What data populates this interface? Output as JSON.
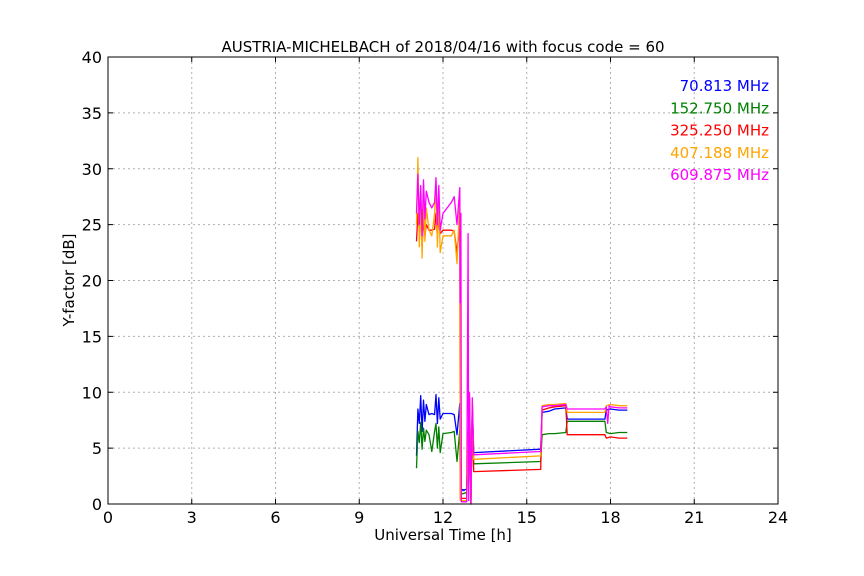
{
  "chart_data": {
    "type": "line",
    "title": "AUSTRIA-MICHELBACH of 2018/04/16 with focus code = 60",
    "xlabel": "Universal Time [h]",
    "ylabel": "Y-factor [dB]",
    "xlim": [
      0,
      24
    ],
    "ylim": [
      0,
      40
    ],
    "xticks": [
      0,
      3,
      6,
      9,
      12,
      15,
      18,
      21,
      24
    ],
    "yticks": [
      0,
      5,
      10,
      15,
      20,
      25,
      30,
      35,
      40
    ],
    "grid": true,
    "legend_position": "top-right",
    "series": [
      {
        "name": "70.813 MHz",
        "color": "#0000ff",
        "x": [
          11.05,
          11.1,
          11.15,
          11.2,
          11.25,
          11.3,
          11.35,
          11.4,
          11.5,
          11.6,
          11.7,
          11.75,
          11.8,
          11.85,
          11.9,
          12.0,
          12.3,
          12.4,
          12.5,
          12.6,
          12.62,
          12.65,
          12.68,
          12.7,
          12.72,
          12.75,
          12.78,
          12.85,
          12.95,
          13.0,
          13.05,
          13.1,
          15.5,
          15.55,
          15.8,
          16.0,
          16.4,
          16.45,
          17.8,
          17.85,
          18.0,
          18.3,
          18.6
        ],
        "y": [
          4.3,
          8.5,
          7.2,
          9.7,
          6.5,
          9.3,
          7.4,
          8.9,
          8.0,
          8.1,
          8.0,
          9.8,
          7.2,
          9.5,
          7.6,
          8.1,
          8.1,
          8.0,
          6.2,
          9.0,
          1.3,
          1.3,
          1.2,
          1.3,
          1.3,
          1.2,
          1.3,
          1.3,
          9.5,
          0.0,
          9.0,
          4.6,
          4.9,
          8.2,
          8.3,
          8.5,
          8.6,
          7.6,
          7.6,
          8.4,
          8.5,
          8.4,
          8.4
        ]
      },
      {
        "name": "152.750 MHz",
        "color": "#008000",
        "x": [
          11.05,
          11.1,
          11.15,
          11.2,
          11.25,
          11.3,
          11.35,
          11.4,
          11.5,
          11.6,
          11.7,
          11.75,
          11.8,
          11.85,
          11.9,
          12.0,
          12.3,
          12.4,
          12.5,
          12.6,
          12.62,
          12.7,
          12.8,
          12.85,
          12.95,
          13.0,
          13.05,
          13.1,
          15.5,
          15.55,
          15.8,
          16.0,
          16.4,
          16.45,
          17.8,
          17.85,
          18.0,
          18.3,
          18.6
        ],
        "y": [
          3.2,
          6.5,
          5.5,
          7.3,
          4.9,
          6.8,
          5.6,
          6.6,
          6.2,
          4.7,
          6.5,
          7.2,
          5.0,
          6.9,
          4.6,
          6.3,
          6.4,
          6.5,
          3.8,
          6.6,
          1.0,
          0.9,
          1.0,
          0.9,
          9.0,
          0.0,
          8.5,
          3.6,
          3.8,
          6.2,
          6.3,
          6.3,
          6.4,
          7.4,
          7.4,
          6.4,
          6.3,
          6.4,
          6.4
        ]
      },
      {
        "name": "325.250 MHz",
        "color": "#ff0000",
        "x": [
          11.05,
          11.1,
          11.15,
          11.2,
          11.25,
          11.3,
          11.35,
          11.4,
          11.5,
          11.6,
          11.7,
          11.75,
          11.8,
          11.85,
          11.9,
          12.0,
          12.3,
          12.4,
          12.5,
          12.6,
          12.62,
          12.8,
          12.85,
          12.95,
          13.0,
          13.05,
          13.1,
          15.5,
          15.55,
          15.8,
          16.0,
          16.4,
          16.45,
          17.8,
          17.85,
          18.0,
          18.3,
          18.6
        ],
        "y": [
          23.5,
          26.0,
          24.5,
          26.5,
          23.0,
          25.5,
          24.0,
          25.0,
          24.5,
          24.5,
          24.6,
          26.0,
          23.8,
          25.5,
          24.2,
          24.5,
          24.5,
          24.4,
          22.5,
          25.0,
          0.5,
          0.5,
          0.5,
          9.5,
          0.0,
          9.0,
          2.9,
          3.1,
          8.4,
          8.6,
          8.7,
          8.8,
          6.2,
          6.2,
          5.9,
          6.0,
          5.9,
          5.9
        ]
      },
      {
        "name": "407.188 MHz",
        "color": "#ffa500",
        "x": [
          11.05,
          11.1,
          11.15,
          11.2,
          11.25,
          11.3,
          11.35,
          11.4,
          11.5,
          11.6,
          11.7,
          11.75,
          11.8,
          11.85,
          11.9,
          12.0,
          12.3,
          12.4,
          12.5,
          12.6,
          12.62,
          12.8,
          12.85,
          12.95,
          13.0,
          13.05,
          13.1,
          15.5,
          15.55,
          15.8,
          16.0,
          16.4,
          16.45,
          17.8,
          17.85,
          18.0,
          18.3,
          18.6
        ],
        "y": [
          25.0,
          31.0,
          23.0,
          27.0,
          22.0,
          28.0,
          23.5,
          26.5,
          24.5,
          24.0,
          26.0,
          28.5,
          23.0,
          27.5,
          22.5,
          24.0,
          24.0,
          24.5,
          21.5,
          27.5,
          0.3,
          0.3,
          0.3,
          9.8,
          0.0,
          9.2,
          4.0,
          4.3,
          8.8,
          8.9,
          8.9,
          9.0,
          8.2,
          8.2,
          8.8,
          8.9,
          8.8,
          8.8
        ]
      },
      {
        "name": "609.875 MHz",
        "color": "#ff00ff",
        "x": [
          11.05,
          11.1,
          11.15,
          11.2,
          11.25,
          11.3,
          11.35,
          11.4,
          11.5,
          11.6,
          11.7,
          11.75,
          11.8,
          11.85,
          11.9,
          12.0,
          12.3,
          12.4,
          12.5,
          12.6,
          12.62,
          12.64,
          12.66,
          12.8,
          12.85,
          12.9,
          12.92,
          12.95,
          13.0,
          13.05,
          13.1,
          15.5,
          15.55,
          15.8,
          16.0,
          16.4,
          16.45,
          17.8,
          17.85,
          17.9,
          17.95,
          18.0,
          18.3,
          18.6
        ],
        "y": [
          26.0,
          29.5,
          25.0,
          28.5,
          24.0,
          29.0,
          25.5,
          28.0,
          27.0,
          26.5,
          27.0,
          29.2,
          25.0,
          28.5,
          24.5,
          26.0,
          27.0,
          27.5,
          25.0,
          28.3,
          18.0,
          26.0,
          0.2,
          0.2,
          0.2,
          24.2,
          0.3,
          10.0,
          0.0,
          9.5,
          4.4,
          4.7,
          8.7,
          8.8,
          8.8,
          8.9,
          8.5,
          8.5,
          8.7,
          7.2,
          8.8,
          8.7,
          8.6,
          8.6
        ]
      }
    ]
  }
}
